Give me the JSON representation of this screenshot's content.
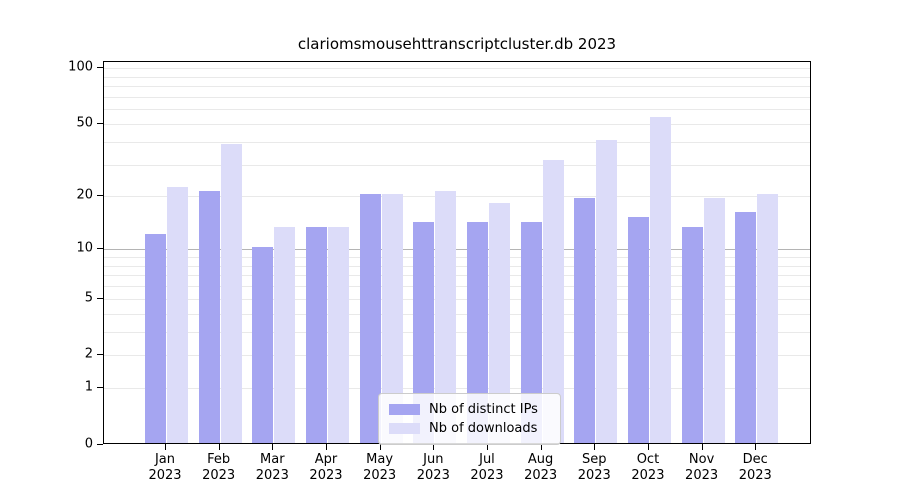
{
  "title": "clariomsmousehttranscriptcluster.db 2023",
  "legend": {
    "items": [
      {
        "label": "Nb of distinct IPs",
        "color": "#a5a5f1"
      },
      {
        "label": "Nb of downloads",
        "color": "#dcdcf9"
      }
    ]
  },
  "chart_data": {
    "type": "bar",
    "title": "clariomsmousehttranscriptcluster.db 2023",
    "categories": [
      "Jan",
      "Feb",
      "Mar",
      "Apr",
      "May",
      "Jun",
      "Jul",
      "Aug",
      "Sep",
      "Oct",
      "Nov",
      "Dec"
    ],
    "category_year": "2023",
    "series": [
      {
        "name": "Nb of distinct IPs",
        "color": "#a5a5f1",
        "values": [
          12,
          21,
          10,
          13,
          20,
          14,
          14,
          14,
          19,
          15,
          13,
          16
        ]
      },
      {
        "name": "Nb of downloads",
        "color": "#dcdcf9",
        "values": [
          22,
          38,
          13,
          13,
          20,
          21,
          18,
          31,
          40,
          53,
          19,
          20
        ]
      }
    ],
    "xlabel": "",
    "ylabel": "",
    "yscale": "log1p",
    "ylim": [
      0,
      100
    ],
    "yticks": [
      0,
      1,
      2,
      5,
      10,
      20,
      50,
      100
    ],
    "gridlines_light": [
      1,
      2,
      3,
      4,
      5,
      6,
      7,
      8,
      9,
      20,
      30,
      40,
      50,
      60,
      70,
      80,
      90,
      100
    ],
    "gridlines_dark": [
      10
    ],
    "grid": true,
    "legend_position": "lower center",
    "gridline_light_color": "#e9e9e9",
    "gridline_dark_color": "#b4b4b4"
  }
}
